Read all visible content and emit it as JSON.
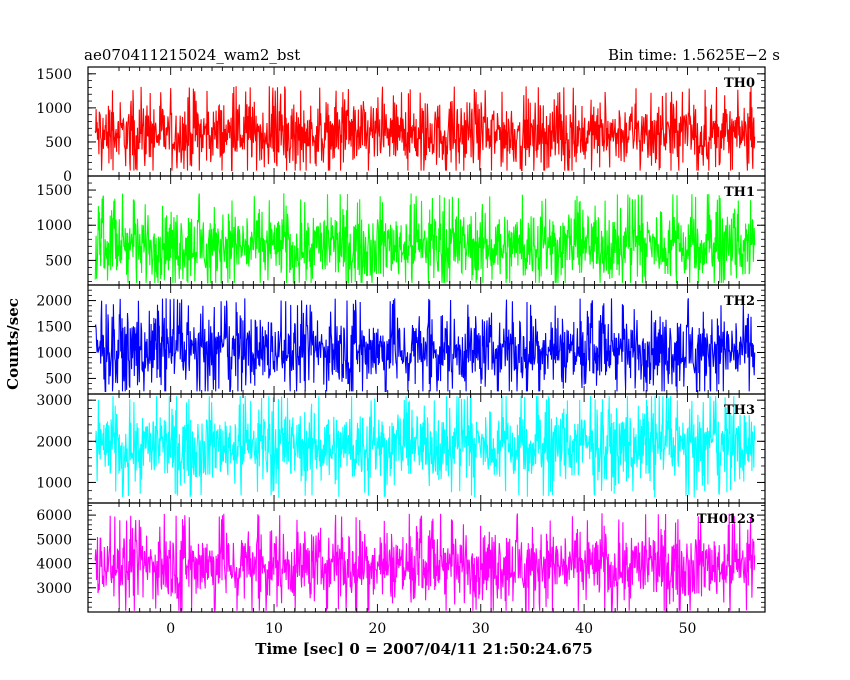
{
  "header": {
    "left": "ae070411215024_wam2_bst",
    "right": "Bin time: 1.5625E−2 s"
  },
  "chart_data": {
    "type": "line",
    "xlabel": "Time [sec] 0 = 2007/04/11 21:50:24.675",
    "ylabel": "Counts/sec",
    "xlim": [
      -8,
      57.5
    ],
    "x_start": -7.3,
    "x_end": 56.5,
    "bin_time": 0.015625,
    "x_ticks": [
      0,
      10,
      20,
      30,
      40,
      50
    ],
    "x_tick_labels": [
      "0",
      "10",
      "20",
      "30",
      "40",
      "50"
    ],
    "panels": [
      {
        "name": "TH0",
        "color": "#ff0000",
        "ylim": [
          0,
          1600
        ],
        "y_ticks": [
          0,
          500,
          1000,
          1500
        ],
        "y_tick_labels": [
          "0",
          "500",
          "1000",
          "1500"
        ],
        "mean": 620,
        "noise_low": 80,
        "noise_high": 1480
      },
      {
        "name": "TH1",
        "color": "#00ff00",
        "ylim": [
          150,
          1700
        ],
        "y_ticks": [
          500,
          1000,
          1500
        ],
        "y_tick_labels": [
          "500",
          "1000",
          "1500"
        ],
        "mean": 720,
        "noise_low": 180,
        "noise_high": 1650
      },
      {
        "name": "TH2",
        "color": "#0000ff",
        "ylim": [
          200,
          2300
        ],
        "y_ticks": [
          500,
          1000,
          1500,
          2000
        ],
        "y_tick_labels": [
          "500",
          "1000",
          "1500",
          "2000"
        ],
        "mean": 1050,
        "noise_low": 250,
        "noise_high": 2250
      },
      {
        "name": "TH3",
        "color": "#00ffff",
        "ylim": [
          500,
          3150
        ],
        "y_ticks": [
          1000,
          2000,
          3000
        ],
        "y_tick_labels": [
          "1000",
          "2000",
          "3000"
        ],
        "mean": 1900,
        "noise_low": 550,
        "noise_high": 3100
      },
      {
        "name": "TH0123",
        "color": "#ff00ff",
        "ylim": [
          2000,
          6500
        ],
        "y_ticks": [
          3000,
          4000,
          5000,
          6000
        ],
        "y_tick_labels": [
          "3000",
          "4000",
          "5000",
          "6000"
        ],
        "mean": 3950,
        "noise_low": 2050,
        "noise_high": 6300
      }
    ]
  }
}
